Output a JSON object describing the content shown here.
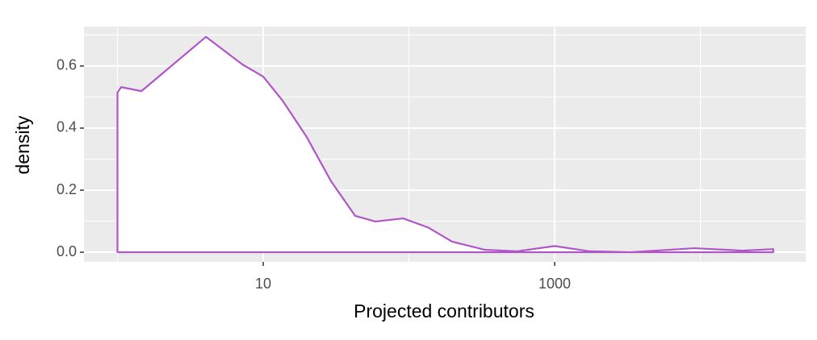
{
  "chart_data": {
    "type": "density",
    "xlabel": "Projected contributors",
    "ylabel": "density",
    "x": [
      1,
      1.06,
      1.46,
      4.05,
      7.2,
      10,
      13.6,
      19.9,
      29.2,
      42.8,
      58.9,
      91.5,
      135,
      198,
      330,
      549,
      1000,
      1740,
      3300,
      9100,
      19500,
      31600
    ],
    "values": [
      0.514,
      0.532,
      0.519,
      0.694,
      0.605,
      0.566,
      0.488,
      0.371,
      0.229,
      0.117,
      0.099,
      0.109,
      0.08,
      0.034,
      0.008,
      0.003,
      0.02,
      0.003,
      0,
      0.013,
      0.005,
      0.01
    ],
    "color": "#b156c8",
    "fill": "#ffffff",
    "xlim": [
      0.589,
      52800
    ],
    "x_log": true,
    "xticks": [
      10,
      1000
    ],
    "x_minor_ticks": [
      1,
      100,
      10000
    ],
    "ylim": [
      -0.031,
      0.727
    ],
    "yticks": [
      0.0,
      0.2,
      0.4,
      0.6
    ],
    "y_minor_ticks": [
      0.1,
      0.3,
      0.5,
      0.7
    ],
    "grid": true
  }
}
